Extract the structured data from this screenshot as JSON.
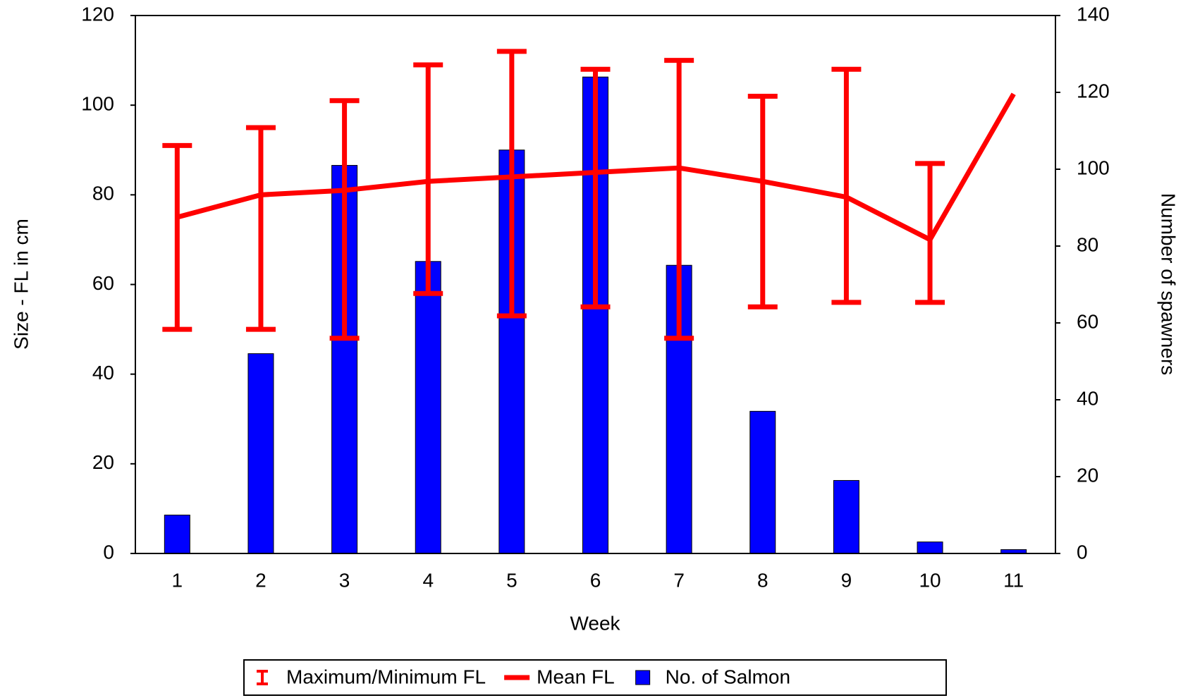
{
  "chart_data": {
    "type": "combo",
    "x_label": "Week",
    "y_label": "Size - FL in cm",
    "y2_label": "Number of spawners",
    "categories": [
      "1",
      "2",
      "3",
      "4",
      "5",
      "6",
      "7",
      "8",
      "9",
      "10",
      "11"
    ],
    "ylim": [
      0,
      120
    ],
    "yticks": [
      0,
      20,
      40,
      60,
      80,
      100,
      120
    ],
    "y2lim": [
      0,
      140
    ],
    "y2ticks": [
      0,
      20,
      40,
      60,
      80,
      100,
      120,
      140
    ],
    "grid": false,
    "series": [
      {
        "name": "Maximum/Minimum FL",
        "type": "errorbar",
        "color": "#ff0000",
        "max": [
          91,
          95,
          101,
          109,
          112,
          108,
          110,
          102,
          108,
          87,
          null
        ],
        "min": [
          50,
          50,
          48,
          58,
          53,
          55,
          48,
          55,
          56,
          56,
          null
        ]
      },
      {
        "name": "Mean FL",
        "type": "line",
        "color": "#ff0000",
        "values": [
          75,
          80,
          81,
          83,
          84,
          85,
          86,
          83,
          79.5,
          70,
          102.5
        ]
      },
      {
        "name": "No. of Salmon",
        "type": "bar",
        "axis": "y2",
        "color": "#0000ff",
        "values": [
          10,
          52,
          101,
          76,
          105,
          124,
          75,
          37,
          19,
          3,
          1
        ]
      }
    ]
  }
}
